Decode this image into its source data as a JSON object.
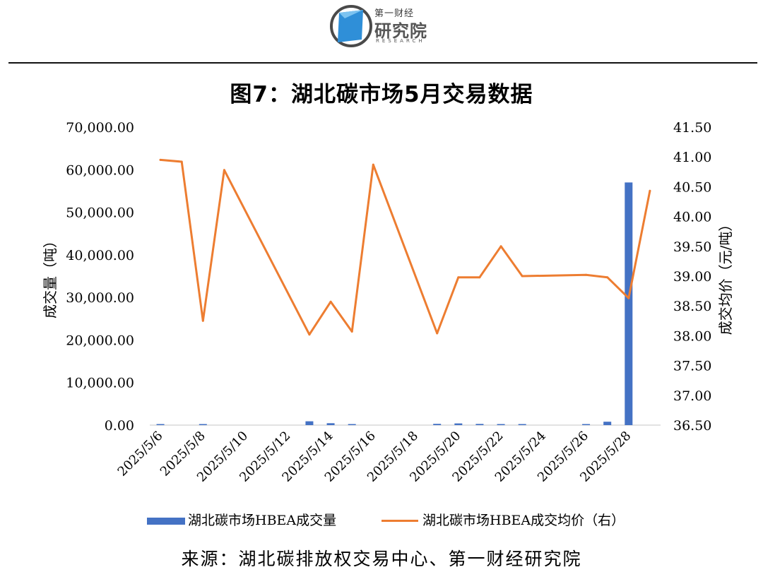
{
  "logo": {
    "line1": "第一财经",
    "line2": "研究院",
    "line3": "RESEARCH",
    "colors": {
      "blue": "#2f8fd8",
      "gray": "#4a4a4a"
    }
  },
  "title": "图7：湖北碳市场5月交易数据",
  "source": "来源：湖北碳排放权交易中心、第一财经研究院",
  "chart_data": {
    "type": "bar+line",
    "title": "图7：湖北碳市场5月交易数据",
    "x": [
      "2025/5/6",
      "2025/5/7",
      "2025/5/8",
      "2025/5/9",
      "2025/5/10",
      "2025/5/11",
      "2025/5/12",
      "2025/5/13",
      "2025/5/14",
      "2025/5/15",
      "2025/5/16",
      "2025/5/17",
      "2025/5/18",
      "2025/5/19",
      "2025/5/20",
      "2025/5/21",
      "2025/5/22",
      "2025/5/23",
      "2025/5/24",
      "2025/5/25",
      "2025/5/26",
      "2025/5/27",
      "2025/5/28",
      "2025/5/29"
    ],
    "x_tick_labels": [
      "2025/5/6",
      "2025/5/8",
      "2025/5/10",
      "2025/5/12",
      "2025/5/14",
      "2025/5/16",
      "2025/5/18",
      "2025/5/20",
      "2025/5/22",
      "2025/5/24",
      "2025/5/26",
      "2025/5/28"
    ],
    "series": [
      {
        "name": "湖北碳市场HBEA成交量",
        "type": "bar",
        "axis": "left",
        "color": "#4472c4",
        "values": [
          150,
          null,
          120,
          null,
          null,
          null,
          null,
          900,
          450,
          180,
          null,
          null,
          null,
          300,
          400,
          280,
          180,
          150,
          null,
          null,
          180,
          800,
          57000,
          null
        ]
      },
      {
        "name": "湖北碳市场HBEA成交均价（右）",
        "type": "line",
        "axis": "right",
        "color": "#ed7d31",
        "values": [
          40.95,
          40.92,
          38.25,
          40.78,
          null,
          null,
          null,
          38.02,
          38.57,
          38.07,
          40.87,
          null,
          null,
          38.04,
          38.98,
          38.98,
          39.5,
          39.0,
          null,
          null,
          39.02,
          38.98,
          38.63,
          40.43
        ]
      }
    ],
    "ylabel": "成交量（吨）",
    "y2label": "成交均价（元/吨）",
    "ylim": [
      0,
      70000
    ],
    "y_ticks": [
      "0.00",
      "10,000.00",
      "20,000.00",
      "30,000.00",
      "40,000.00",
      "50,000.00",
      "60,000.00",
      "70,000.00"
    ],
    "y2lim": [
      36.5,
      41.5
    ],
    "y2_ticks": [
      "36.50",
      "37.00",
      "37.50",
      "38.00",
      "38.50",
      "39.00",
      "39.50",
      "40.00",
      "40.50",
      "41.00",
      "41.50"
    ],
    "grid": false,
    "legend": "bottom"
  }
}
